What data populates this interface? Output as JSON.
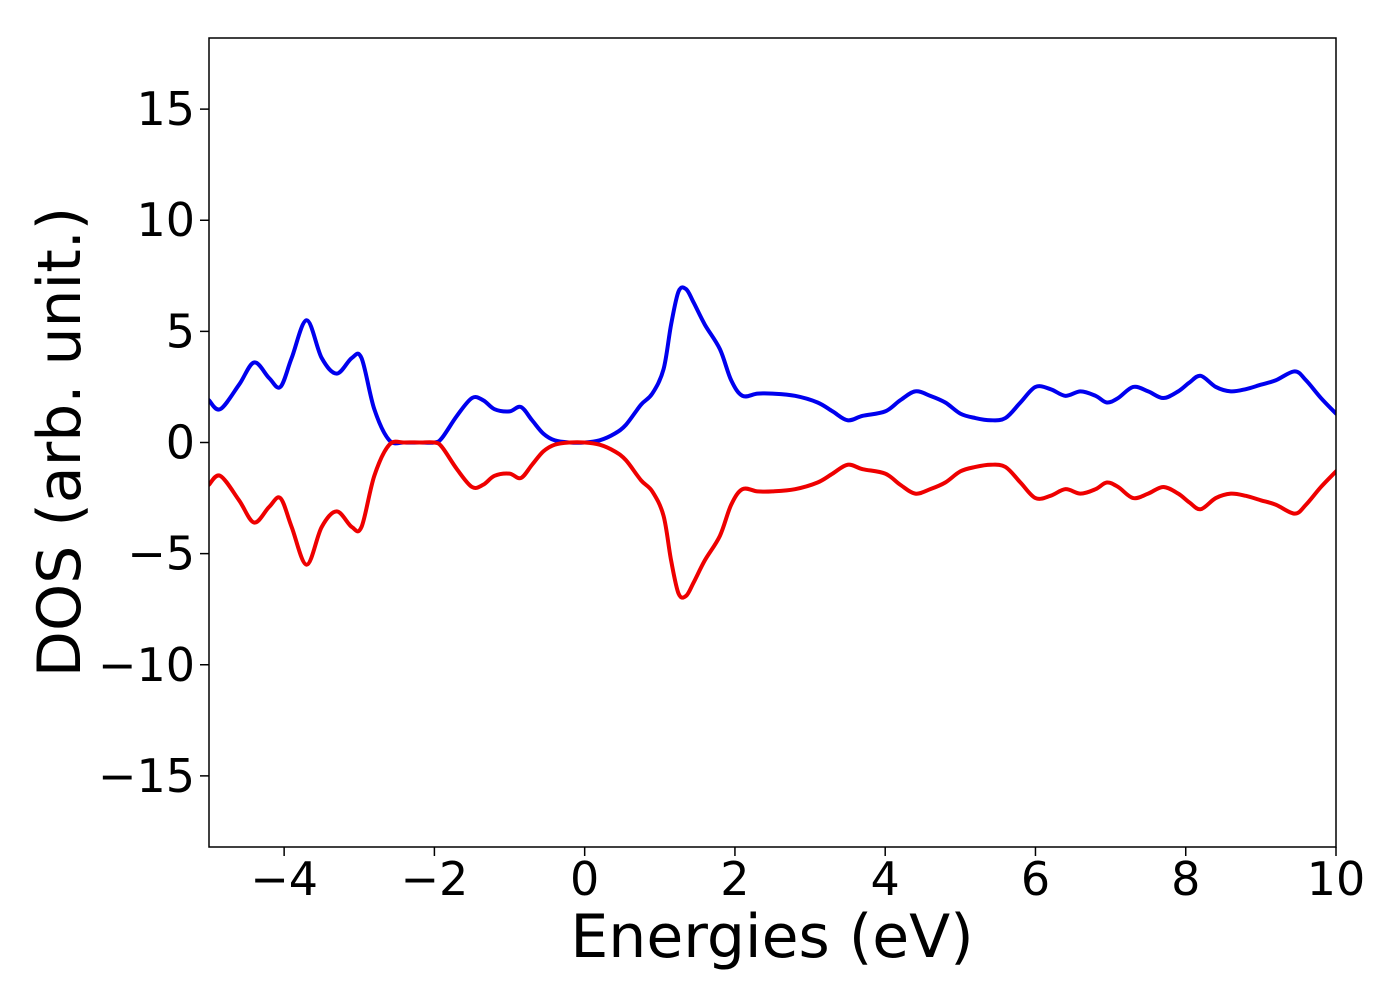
{
  "chart_data": {
    "type": "line",
    "title": "",
    "xlabel": "Energies (eV)",
    "ylabel": "DOS (arb. unit.)",
    "xlim": [
      -5,
      10
    ],
    "ylim": [
      -18.2,
      18.2
    ],
    "xticks": [
      -4,
      -2,
      0,
      2,
      4,
      6,
      8,
      10
    ],
    "xtick_labels": [
      "−4",
      "−2",
      "0",
      "2",
      "4",
      "6",
      "8",
      "10"
    ],
    "yticks": [
      15,
      10,
      5,
      0,
      -5,
      -10,
      -15
    ],
    "ytick_labels": [
      "15",
      "10",
      "5",
      "0",
      "−5",
      "−10",
      "−15"
    ],
    "grid": false,
    "legend": "none",
    "x": [
      -5.0,
      -4.85,
      -4.6,
      -4.4,
      -4.2,
      -4.05,
      -3.9,
      -3.7,
      -3.5,
      -3.3,
      -3.1,
      -2.97,
      -2.8,
      -2.6,
      -2.4,
      -2.2,
      -2.0,
      -1.9,
      -1.7,
      -1.5,
      -1.35,
      -1.2,
      -1.0,
      -0.85,
      -0.7,
      -0.55,
      -0.4,
      -0.2,
      0.0,
      0.2,
      0.4,
      0.55,
      0.75,
      0.9,
      1.05,
      1.15,
      1.25,
      1.35,
      1.45,
      1.6,
      1.8,
      1.95,
      2.1,
      2.3,
      2.5,
      2.8,
      3.1,
      3.3,
      3.5,
      3.7,
      4.0,
      4.2,
      4.4,
      4.6,
      4.8,
      5.0,
      5.2,
      5.4,
      5.6,
      5.8,
      6.0,
      6.2,
      6.4,
      6.6,
      6.8,
      6.95,
      7.1,
      7.3,
      7.5,
      7.7,
      7.9,
      8.05,
      8.2,
      8.4,
      8.6,
      8.8,
      9.0,
      9.2,
      9.45,
      9.6,
      9.8,
      10.0
    ],
    "series": [
      {
        "color": "#0000ee",
        "values": [
          1.9,
          1.5,
          2.6,
          3.6,
          2.9,
          2.5,
          3.8,
          5.5,
          3.8,
          3.1,
          3.8,
          3.8,
          1.5,
          0.1,
          0.0,
          0.0,
          0.0,
          0.2,
          1.2,
          2.0,
          1.9,
          1.5,
          1.4,
          1.6,
          1.0,
          0.4,
          0.1,
          0.0,
          0.0,
          0.1,
          0.4,
          0.8,
          1.7,
          2.2,
          3.3,
          5.3,
          6.8,
          6.9,
          6.3,
          5.3,
          4.2,
          2.8,
          2.1,
          2.2,
          2.2,
          2.1,
          1.8,
          1.4,
          1.0,
          1.2,
          1.4,
          1.9,
          2.3,
          2.1,
          1.8,
          1.3,
          1.1,
          1.0,
          1.1,
          1.8,
          2.5,
          2.4,
          2.1,
          2.3,
          2.1,
          1.8,
          2.0,
          2.5,
          2.3,
          2.0,
          2.3,
          2.7,
          3.0,
          2.5,
          2.3,
          2.4,
          2.6,
          2.8,
          3.2,
          2.8,
          2.0,
          1.3
        ]
      },
      {
        "color": "#ee0000",
        "values": [
          -1.9,
          -1.5,
          -2.6,
          -3.6,
          -2.9,
          -2.5,
          -3.8,
          -5.5,
          -3.8,
          -3.1,
          -3.8,
          -3.8,
          -1.5,
          -0.1,
          -0.0,
          -0.0,
          -0.0,
          -0.2,
          -1.2,
          -2.0,
          -1.9,
          -1.5,
          -1.4,
          -1.6,
          -1.0,
          -0.4,
          -0.1,
          -0.0,
          -0.0,
          -0.1,
          -0.4,
          -0.8,
          -1.7,
          -2.2,
          -3.3,
          -5.3,
          -6.8,
          -6.9,
          -6.3,
          -5.3,
          -4.2,
          -2.8,
          -2.1,
          -2.2,
          -2.2,
          -2.1,
          -1.8,
          -1.4,
          -1.0,
          -1.2,
          -1.4,
          -1.9,
          -2.3,
          -2.1,
          -1.8,
          -1.3,
          -1.1,
          -1.0,
          -1.1,
          -1.8,
          -2.5,
          -2.4,
          -2.1,
          -2.3,
          -2.1,
          -1.8,
          -2.0,
          -2.5,
          -2.3,
          -2.0,
          -2.3,
          -2.7,
          -3.0,
          -2.5,
          -2.3,
          -2.4,
          -2.6,
          -2.8,
          -3.2,
          -2.8,
          -2.0,
          -1.3
        ]
      }
    ]
  }
}
